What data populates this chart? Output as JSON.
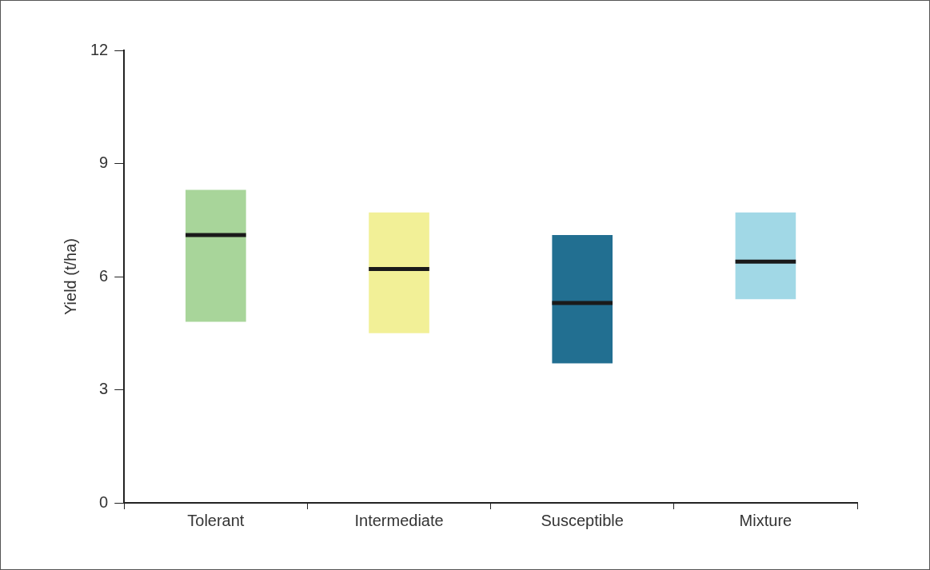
{
  "chart_data": {
    "type": "box",
    "ylabel": "Yield (t/ha)",
    "categories": [
      "Tolerant",
      "Intermediate",
      "Susceptible",
      "Mixture"
    ],
    "boxes": [
      {
        "low": 4.8,
        "q1": 4.8,
        "median": 7.1,
        "q3": 8.3,
        "high": 8.3
      },
      {
        "low": 4.5,
        "q1": 4.5,
        "median": 6.2,
        "q3": 7.7,
        "high": 7.7
      },
      {
        "low": 3.7,
        "q1": 3.7,
        "median": 5.3,
        "q3": 7.1,
        "high": 7.1
      },
      {
        "low": 5.4,
        "q1": 5.4,
        "median": 6.4,
        "q3": 7.7,
        "high": 7.7
      }
    ],
    "colors": [
      "#a8d59a",
      "#f2f097",
      "#226f91",
      "#a1d8e6"
    ],
    "ylim": [
      0,
      12
    ],
    "yticks": [
      0,
      3,
      6,
      9,
      12
    ]
  }
}
